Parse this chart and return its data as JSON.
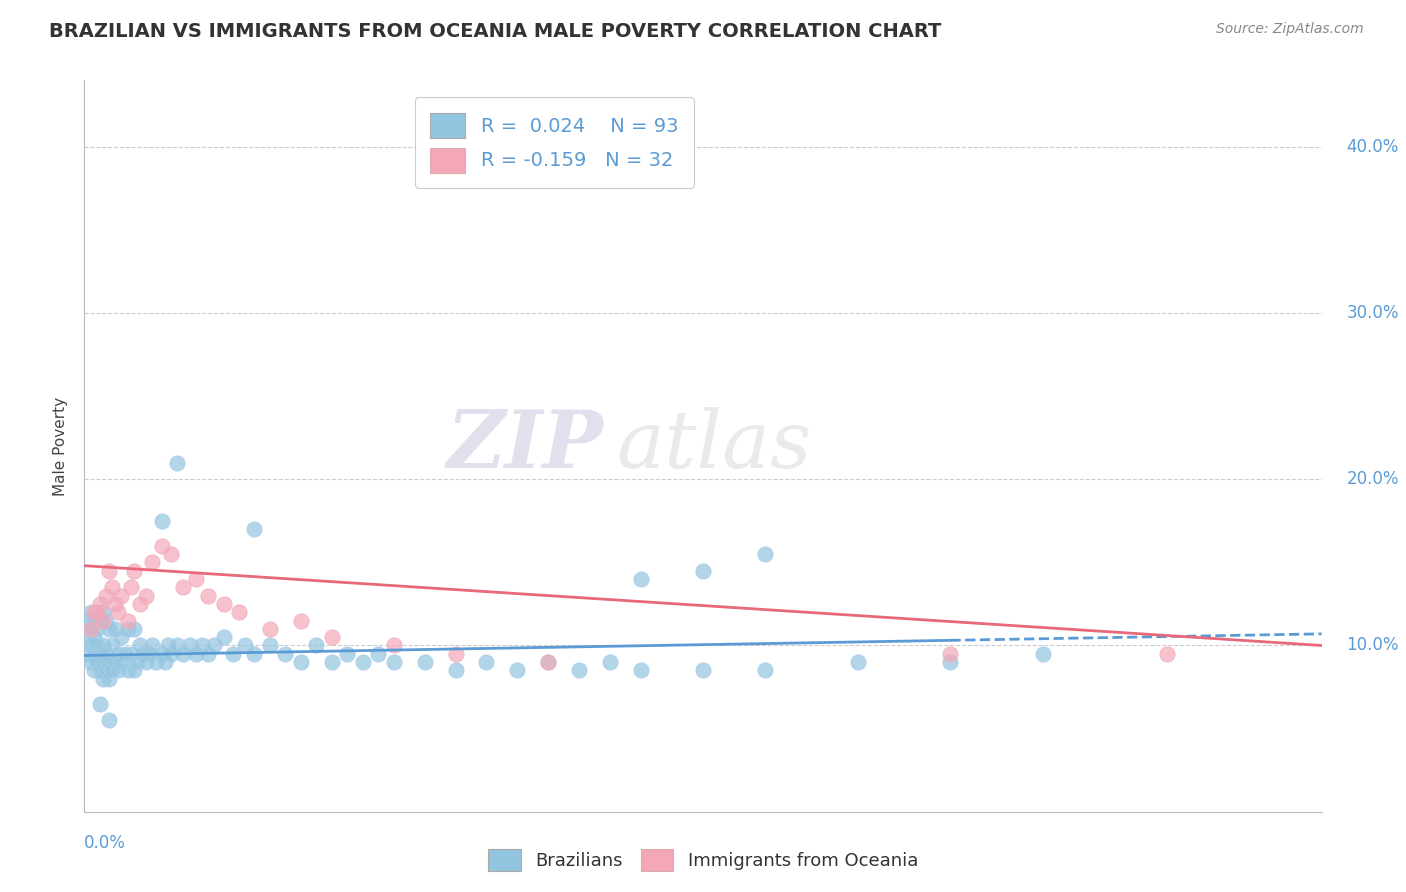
{
  "title": "BRAZILIAN VS IMMIGRANTS FROM OCEANIA MALE POVERTY CORRELATION CHART",
  "source": "Source: ZipAtlas.com",
  "ylabel": "Male Poverty",
  "ytick_values": [
    0.1,
    0.2,
    0.3,
    0.4
  ],
  "xlim": [
    0.0,
    0.4
  ],
  "ylim": [
    0.0,
    0.44
  ],
  "color_blue": "#92C5DE",
  "color_pink": "#F4A7B9",
  "line_blue_solid": "#5B9BD5",
  "line_pink": "#E8697A",
  "watermark_zip": "ZIP",
  "watermark_atlas": "atlas",
  "series1_label": "Brazilians",
  "series2_label": "Immigrants from Oceania",
  "brazil_x": [
    0.001,
    0.001,
    0.001,
    0.002,
    0.002,
    0.002,
    0.002,
    0.003,
    0.003,
    0.003,
    0.003,
    0.004,
    0.004,
    0.004,
    0.005,
    0.005,
    0.005,
    0.006,
    0.006,
    0.006,
    0.006,
    0.007,
    0.007,
    0.007,
    0.008,
    0.008,
    0.008,
    0.009,
    0.009,
    0.01,
    0.01,
    0.011,
    0.011,
    0.012,
    0.012,
    0.013,
    0.014,
    0.014,
    0.015,
    0.016,
    0.016,
    0.017,
    0.018,
    0.019,
    0.02,
    0.021,
    0.022,
    0.023,
    0.025,
    0.026,
    0.027,
    0.028,
    0.03,
    0.032,
    0.034,
    0.036,
    0.038,
    0.04,
    0.042,
    0.045,
    0.048,
    0.052,
    0.055,
    0.06,
    0.065,
    0.07,
    0.075,
    0.08,
    0.085,
    0.09,
    0.095,
    0.1,
    0.11,
    0.12,
    0.13,
    0.14,
    0.15,
    0.16,
    0.17,
    0.18,
    0.2,
    0.22,
    0.25,
    0.28,
    0.31,
    0.025,
    0.03,
    0.055,
    0.18,
    0.2,
    0.22,
    0.005,
    0.008
  ],
  "brazil_y": [
    0.095,
    0.105,
    0.115,
    0.09,
    0.1,
    0.11,
    0.12,
    0.085,
    0.095,
    0.105,
    0.115,
    0.09,
    0.1,
    0.11,
    0.085,
    0.095,
    0.115,
    0.08,
    0.09,
    0.1,
    0.12,
    0.085,
    0.095,
    0.115,
    0.08,
    0.09,
    0.11,
    0.085,
    0.1,
    0.09,
    0.11,
    0.085,
    0.095,
    0.09,
    0.105,
    0.095,
    0.085,
    0.11,
    0.095,
    0.085,
    0.11,
    0.09,
    0.1,
    0.095,
    0.09,
    0.095,
    0.1,
    0.09,
    0.095,
    0.09,
    0.1,
    0.095,
    0.1,
    0.095,
    0.1,
    0.095,
    0.1,
    0.095,
    0.1,
    0.105,
    0.095,
    0.1,
    0.095,
    0.1,
    0.095,
    0.09,
    0.1,
    0.09,
    0.095,
    0.09,
    0.095,
    0.09,
    0.09,
    0.085,
    0.09,
    0.085,
    0.09,
    0.085,
    0.09,
    0.085,
    0.085,
    0.085,
    0.09,
    0.09,
    0.095,
    0.175,
    0.21,
    0.17,
    0.14,
    0.145,
    0.155,
    0.065,
    0.055
  ],
  "oceania_x": [
    0.002,
    0.003,
    0.004,
    0.005,
    0.006,
    0.007,
    0.008,
    0.009,
    0.01,
    0.011,
    0.012,
    0.014,
    0.015,
    0.016,
    0.018,
    0.02,
    0.022,
    0.025,
    0.028,
    0.032,
    0.036,
    0.04,
    0.045,
    0.05,
    0.06,
    0.07,
    0.08,
    0.1,
    0.12,
    0.15,
    0.28,
    0.35
  ],
  "oceania_y": [
    0.11,
    0.12,
    0.12,
    0.125,
    0.115,
    0.13,
    0.145,
    0.135,
    0.125,
    0.12,
    0.13,
    0.115,
    0.135,
    0.145,
    0.125,
    0.13,
    0.15,
    0.16,
    0.155,
    0.135,
    0.14,
    0.13,
    0.125,
    0.12,
    0.11,
    0.115,
    0.105,
    0.1,
    0.095,
    0.09,
    0.095,
    0.095
  ],
  "brazil_trend_x": [
    0.0,
    0.4
  ],
  "brazil_trend_y": [
    0.094,
    0.107
  ],
  "oceania_trend_x": [
    0.0,
    0.4
  ],
  "oceania_trend_y": [
    0.148,
    0.1
  ]
}
